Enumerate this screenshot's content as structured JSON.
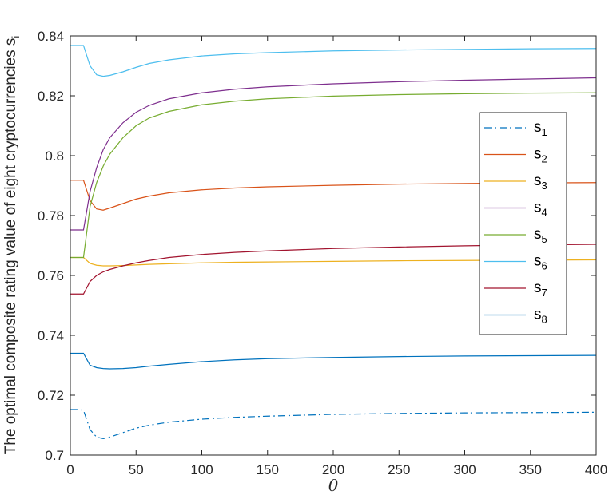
{
  "chart_data": {
    "type": "line",
    "title": "",
    "xlabel": "θ",
    "ylabel": "The optimal composite rating value of eight cryptocurrencies s",
    "ylabel_subscript": "i",
    "xlim": [
      0,
      400
    ],
    "ylim": [
      0.7,
      0.84
    ],
    "xticks": [
      0,
      50,
      100,
      150,
      200,
      250,
      300,
      350,
      400
    ],
    "xtick_labels": [
      "0",
      "50",
      "100",
      "150",
      "200",
      "250",
      "300",
      "350",
      "400"
    ],
    "yticks": [
      0.7,
      0.72,
      0.74,
      0.76,
      0.78,
      0.8,
      0.82,
      0.84
    ],
    "ytick_labels": [
      "0.7",
      "0.72",
      "0.74",
      "0.76",
      "0.78",
      "0.8",
      "0.82",
      "0.84"
    ],
    "grid": false,
    "legend_position": "right",
    "x": [
      0,
      5,
      10,
      15,
      20,
      25,
      30,
      40,
      50,
      60,
      75,
      100,
      125,
      150,
      200,
      250,
      300,
      350,
      400
    ],
    "series": [
      {
        "name": "s",
        "subscript": "1",
        "color": "#0072BD",
        "dash": "dashdot",
        "values": [
          0.7152,
          0.7152,
          0.715,
          0.7085,
          0.706,
          0.7055,
          0.706,
          0.7075,
          0.709,
          0.71,
          0.711,
          0.712,
          0.7126,
          0.713,
          0.7136,
          0.7139,
          0.7141,
          0.7142,
          0.7143
        ]
      },
      {
        "name": "s",
        "subscript": "2",
        "color": "#D95319",
        "dash": "solid",
        "values": [
          0.7918,
          0.7918,
          0.7918,
          0.785,
          0.7822,
          0.7818,
          0.7825,
          0.784,
          0.7855,
          0.7865,
          0.7876,
          0.7886,
          0.7892,
          0.7896,
          0.7901,
          0.7905,
          0.7907,
          0.7909,
          0.791
        ]
      },
      {
        "name": "s",
        "subscript": "3",
        "color": "#EDB120",
        "dash": "solid",
        "values": [
          0.766,
          0.766,
          0.766,
          0.764,
          0.7634,
          0.7632,
          0.7632,
          0.7633,
          0.7635,
          0.7637,
          0.7639,
          0.7642,
          0.7644,
          0.7645,
          0.7647,
          0.7649,
          0.765,
          0.7651,
          0.7652
        ]
      },
      {
        "name": "s",
        "subscript": "4",
        "color": "#7E2F8E",
        "dash": "solid",
        "values": [
          0.7752,
          0.7752,
          0.7752,
          0.788,
          0.796,
          0.802,
          0.806,
          0.811,
          0.8145,
          0.8168,
          0.819,
          0.821,
          0.8222,
          0.823,
          0.824,
          0.8247,
          0.8252,
          0.8256,
          0.826
        ]
      },
      {
        "name": "s",
        "subscript": "5",
        "color": "#77AC30",
        "dash": "solid",
        "values": [
          0.766,
          0.766,
          0.766,
          0.783,
          0.791,
          0.7965,
          0.8005,
          0.806,
          0.81,
          0.8126,
          0.8148,
          0.817,
          0.8182,
          0.819,
          0.8199,
          0.8204,
          0.8207,
          0.8209,
          0.821
        ]
      },
      {
        "name": "s",
        "subscript": "6",
        "color": "#4DBEEE",
        "dash": "solid",
        "values": [
          0.8368,
          0.8368,
          0.8368,
          0.83,
          0.827,
          0.8265,
          0.8268,
          0.828,
          0.8295,
          0.8308,
          0.832,
          0.8333,
          0.834,
          0.8344,
          0.835,
          0.8353,
          0.8355,
          0.8357,
          0.8358
        ]
      },
      {
        "name": "s",
        "subscript": "7",
        "color": "#A2142F",
        "dash": "solid",
        "values": [
          0.7538,
          0.7538,
          0.7538,
          0.758,
          0.76,
          0.7612,
          0.762,
          0.7632,
          0.7642,
          0.765,
          0.766,
          0.767,
          0.7677,
          0.7682,
          0.769,
          0.7695,
          0.7699,
          0.7702,
          0.7704
        ]
      },
      {
        "name": "s",
        "subscript": "8",
        "color": "#0072BD",
        "dash": "solid",
        "values": [
          0.734,
          0.734,
          0.734,
          0.73,
          0.7292,
          0.7289,
          0.7288,
          0.7289,
          0.7292,
          0.7297,
          0.7303,
          0.7312,
          0.7318,
          0.7322,
          0.7326,
          0.7329,
          0.7331,
          0.7332,
          0.7333
        ]
      }
    ]
  }
}
